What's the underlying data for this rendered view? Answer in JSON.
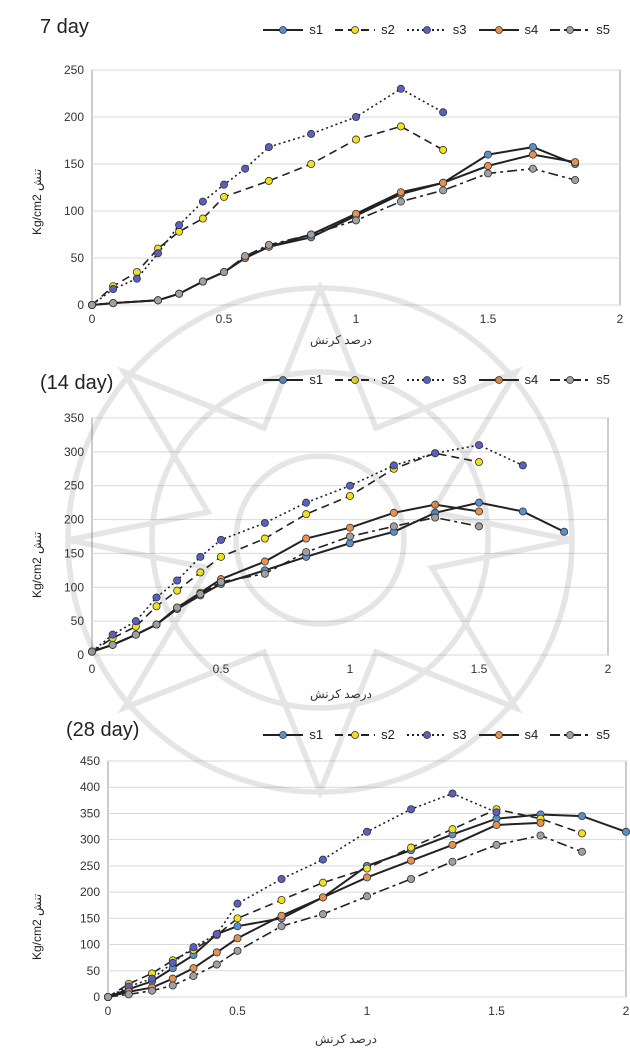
{
  "panels": [
    {
      "title": "7 day",
      "ylabel": "Kg/cm2 تنش",
      "xlabel": "درصد کرنش",
      "legend": [
        "s1",
        "s2",
        "s3",
        "s4",
        "s5"
      ],
      "ylim": [
        0,
        250
      ],
      "yticks": [
        0,
        50,
        100,
        150,
        200,
        250
      ],
      "xlim": [
        0,
        2
      ],
      "xticks": [
        0,
        0.5,
        1,
        1.5,
        2
      ]
    },
    {
      "title": "(14 day)",
      "ylabel": "Kg/cm2 تنش",
      "xlabel": "درصد کرنش",
      "legend": [
        "s1",
        "s2",
        "s3",
        "s4",
        "s5"
      ],
      "ylim": [
        0,
        350
      ],
      "yticks": [
        0,
        50,
        100,
        150,
        200,
        250,
        300,
        350
      ],
      "xlim": [
        0,
        2
      ],
      "xticks": [
        0,
        0.5,
        1,
        1.5,
        2
      ]
    },
    {
      "title": "(28 day)",
      "ylabel": "Kg/cm2 تنش",
      "xlabel": "درصد کرنش",
      "legend": [
        "s1",
        "s2",
        "s3",
        "s4",
        "s5"
      ],
      "ylim": [
        0,
        450
      ],
      "yticks": [
        0,
        50,
        100,
        150,
        200,
        250,
        300,
        350,
        400,
        450
      ],
      "xlim": [
        0,
        2
      ],
      "xticks": [
        0,
        0.5,
        1,
        1.5,
        2
      ]
    }
  ],
  "colors": {
    "s1": "#5b8fc7",
    "s2": "#f0e020",
    "s3": "#5a5fc0",
    "s4": "#e89050",
    "s5": "#a0a0a0",
    "line": "#222222",
    "grid": "#d9d9d9"
  },
  "chart_data": [
    {
      "type": "line",
      "title": "7 day",
      "xlabel": "درصد کرنش",
      "ylabel": "Kg/cm2 تنش",
      "xlim": [
        0,
        2
      ],
      "ylim": [
        0,
        250
      ],
      "grid": true,
      "legend_position": "top",
      "series": [
        {
          "name": "s1",
          "x": [
            0,
            0.08,
            0.25,
            0.33,
            0.42,
            0.5,
            0.58,
            0.67,
            0.83,
            1.0,
            1.17,
            1.33,
            1.5,
            1.67,
            1.83
          ],
          "y": [
            0,
            2,
            5,
            12,
            25,
            35,
            50,
            62,
            72,
            95,
            118,
            130,
            160,
            168,
            150
          ]
        },
        {
          "name": "s2",
          "x": [
            0,
            0.08,
            0.17,
            0.25,
            0.33,
            0.42,
            0.5,
            0.67,
            0.83,
            1.0,
            1.17,
            1.33
          ],
          "y": [
            0,
            20,
            35,
            60,
            78,
            92,
            115,
            132,
            150,
            176,
            190,
            165
          ]
        },
        {
          "name": "s3",
          "x": [
            0,
            0.08,
            0.17,
            0.25,
            0.33,
            0.42,
            0.5,
            0.58,
            0.67,
            0.83,
            1.0,
            1.17,
            1.33
          ],
          "y": [
            0,
            17,
            28,
            55,
            85,
            110,
            128,
            145,
            168,
            182,
            200,
            230,
            205
          ]
        },
        {
          "name": "s4",
          "x": [
            0,
            0.08,
            0.25,
            0.33,
            0.42,
            0.5,
            0.58,
            0.67,
            0.83,
            1.0,
            1.17,
            1.33,
            1.5,
            1.67,
            1.83
          ],
          "y": [
            0,
            2,
            5,
            12,
            25,
            35,
            50,
            62,
            75,
            97,
            120,
            130,
            148,
            160,
            152
          ]
        },
        {
          "name": "s5",
          "x": [
            0,
            0.08,
            0.25,
            0.33,
            0.42,
            0.5,
            0.58,
            0.67,
            0.83,
            1.0,
            1.17,
            1.33,
            1.5,
            1.67,
            1.83
          ],
          "y": [
            0,
            2,
            5,
            12,
            25,
            35,
            52,
            64,
            75,
            90,
            110,
            122,
            140,
            145,
            133
          ]
        }
      ]
    },
    {
      "type": "line",
      "title": "(14 day)",
      "xlabel": "درصد کرنش",
      "ylabel": "Kg/cm2 تنش",
      "xlim": [
        0,
        2
      ],
      "ylim": [
        0,
        350
      ],
      "grid": true,
      "legend_position": "top",
      "series": [
        {
          "name": "s1",
          "x": [
            0,
            0.08,
            0.17,
            0.25,
            0.33,
            0.42,
            0.5,
            0.67,
            0.83,
            1.0,
            1.17,
            1.33,
            1.5,
            1.67,
            1.83
          ],
          "y": [
            5,
            15,
            30,
            45,
            68,
            88,
            105,
            125,
            145,
            165,
            182,
            210,
            225,
            212,
            182
          ]
        },
        {
          "name": "s2",
          "x": [
            0,
            0.08,
            0.17,
            0.25,
            0.33,
            0.42,
            0.5,
            0.67,
            0.83,
            1.0,
            1.17,
            1.33,
            1.5
          ],
          "y": [
            5,
            25,
            42,
            72,
            95,
            122,
            145,
            172,
            208,
            235,
            275,
            298,
            285
          ]
        },
        {
          "name": "s3",
          "x": [
            0,
            0.08,
            0.17,
            0.25,
            0.33,
            0.42,
            0.5,
            0.67,
            0.83,
            1.0,
            1.17,
            1.33,
            1.5,
            1.67
          ],
          "y": [
            5,
            30,
            50,
            85,
            110,
            145,
            170,
            195,
            225,
            250,
            280,
            298,
            310,
            280
          ]
        },
        {
          "name": "s4",
          "x": [
            0,
            0.08,
            0.17,
            0.25,
            0.33,
            0.42,
            0.5,
            0.67,
            0.83,
            1.0,
            1.17,
            1.33,
            1.5
          ],
          "y": [
            5,
            15,
            30,
            45,
            70,
            92,
            112,
            138,
            172,
            188,
            210,
            222,
            212
          ]
        },
        {
          "name": "s5",
          "x": [
            0,
            0.08,
            0.17,
            0.25,
            0.33,
            0.42,
            0.5,
            0.67,
            0.83,
            1.0,
            1.17,
            1.33,
            1.5
          ],
          "y": [
            5,
            15,
            30,
            45,
            70,
            90,
            108,
            120,
            152,
            175,
            190,
            203,
            190
          ]
        }
      ]
    },
    {
      "type": "line",
      "title": "(28 day)",
      "xlabel": "درصد کرنش",
      "ylabel": "Kg/cm2 تنش",
      "xlim": [
        0,
        2
      ],
      "ylim": [
        0,
        450
      ],
      "grid": true,
      "legend_position": "top",
      "series": [
        {
          "name": "s1",
          "x": [
            0,
            0.08,
            0.17,
            0.25,
            0.33,
            0.42,
            0.5,
            0.67,
            0.83,
            1.0,
            1.17,
            1.33,
            1.5,
            1.67,
            1.83,
            2.0
          ],
          "y": [
            0,
            15,
            30,
            55,
            80,
            120,
            135,
            150,
            190,
            250,
            280,
            310,
            340,
            348,
            345,
            315
          ]
        },
        {
          "name": "s2",
          "x": [
            0,
            0.08,
            0.17,
            0.25,
            0.33,
            0.42,
            0.5,
            0.67,
            0.83,
            1.0,
            1.17,
            1.33,
            1.5,
            1.67,
            1.83
          ],
          "y": [
            0,
            25,
            45,
            70,
            90,
            118,
            150,
            185,
            218,
            245,
            285,
            320,
            358,
            340,
            312
          ]
        },
        {
          "name": "s3",
          "x": [
            0,
            0.08,
            0.17,
            0.25,
            0.33,
            0.42,
            0.5,
            0.67,
            0.83,
            1.0,
            1.17,
            1.33,
            1.5
          ],
          "y": [
            0,
            20,
            35,
            65,
            95,
            120,
            178,
            225,
            262,
            315,
            358,
            388,
            352
          ]
        },
        {
          "name": "s4",
          "x": [
            0,
            0.08,
            0.17,
            0.25,
            0.33,
            0.42,
            0.5,
            0.67,
            0.83,
            1.0,
            1.17,
            1.33,
            1.5,
            1.67
          ],
          "y": [
            0,
            10,
            18,
            35,
            55,
            85,
            112,
            155,
            190,
            228,
            260,
            290,
            328,
            332
          ]
        },
        {
          "name": "s5",
          "x": [
            0,
            0.08,
            0.17,
            0.25,
            0.33,
            0.42,
            0.5,
            0.67,
            0.83,
            1.0,
            1.17,
            1.33,
            1.5,
            1.67,
            1.83
          ],
          "y": [
            0,
            5,
            12,
            22,
            40,
            62,
            88,
            135,
            158,
            192,
            225,
            258,
            290,
            308,
            277
          ]
        }
      ]
    }
  ]
}
